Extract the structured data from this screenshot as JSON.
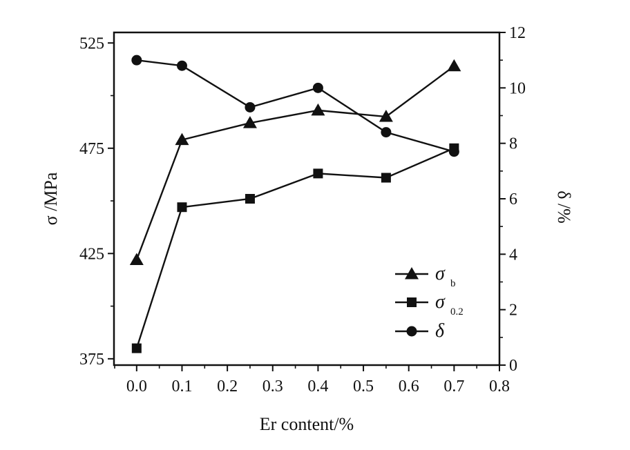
{
  "chart_data": {
    "type": "line",
    "xlabel": "Er content/%",
    "ylabel_left": "σ /MPa",
    "ylabel_right": "δ /%",
    "xlim": [
      -0.05,
      0.8
    ],
    "ylim_left": [
      372,
      530
    ],
    "ylim_right": [
      0,
      12
    ],
    "x_ticks": [
      "0.0",
      "0.1",
      "0.2",
      "0.3",
      "0.4",
      "0.5",
      "0.6",
      "0.7",
      "0.8"
    ],
    "y_left_ticks": [
      "375",
      "425",
      "475",
      "525"
    ],
    "y_right_ticks": [
      "0",
      "2",
      "4",
      "6",
      "8",
      "10",
      "12"
    ],
    "grid": false,
    "legend_position": "bottom-right",
    "series": [
      {
        "name": "σ",
        "subscript": "b",
        "marker": "triangle",
        "axis": "left",
        "x": [
          0.0,
          0.1,
          0.25,
          0.4,
          0.55,
          0.7
        ],
        "values": [
          422,
          479,
          487,
          493,
          490,
          514
        ]
      },
      {
        "name": "σ",
        "subscript": "0.2",
        "marker": "square",
        "axis": "left",
        "x": [
          0.0,
          0.1,
          0.25,
          0.4,
          0.55,
          0.7
        ],
        "values": [
          380,
          447,
          451,
          463,
          461,
          475
        ]
      },
      {
        "name": "δ",
        "subscript": "",
        "marker": "circle",
        "axis": "right",
        "x": [
          0.0,
          0.1,
          0.25,
          0.4,
          0.55,
          0.7
        ],
        "values": [
          11.0,
          10.8,
          9.3,
          10.0,
          8.4,
          7.7
        ]
      }
    ]
  }
}
